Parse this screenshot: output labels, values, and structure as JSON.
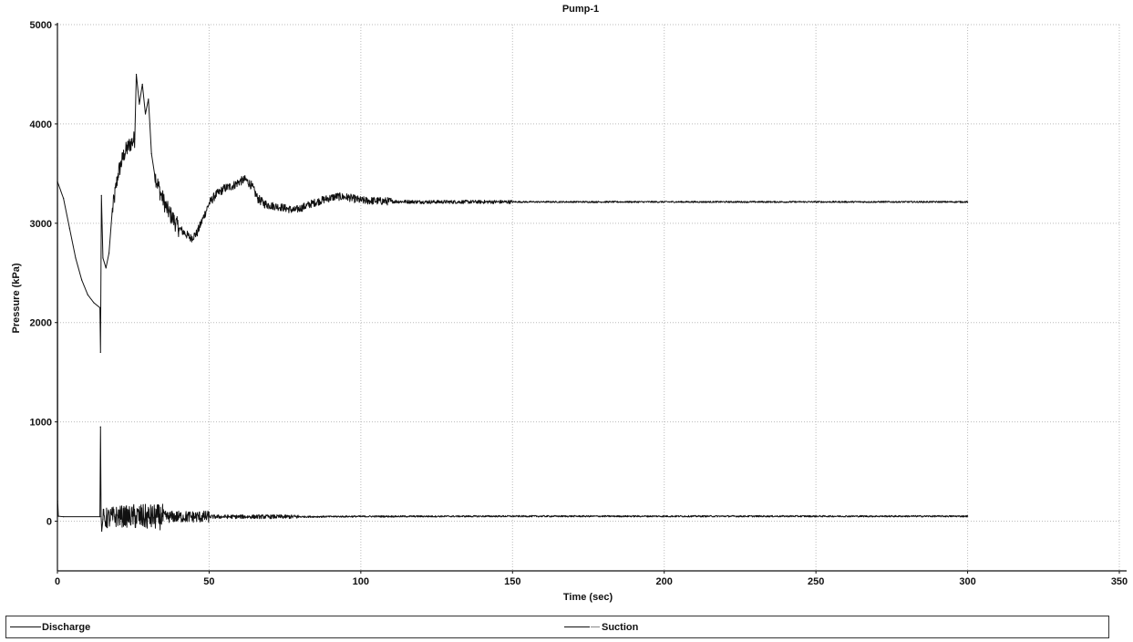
{
  "chart_data": {
    "type": "line",
    "title": "Pump-1",
    "xlabel": "Time (sec)",
    "ylabel": "Pressure (kPa)",
    "xlim": [
      0,
      350
    ],
    "ylim": [
      -500,
      5000
    ],
    "xticks": [
      0,
      50,
      100,
      150,
      200,
      250,
      300,
      350
    ],
    "yticks": [
      0,
      1000,
      2000,
      3000,
      4000,
      5000
    ],
    "grid": true,
    "legend_position": "bottom",
    "series": [
      {
        "name": "Discharge",
        "color": "#111111",
        "noise": [
          {
            "from": 14,
            "to": 40,
            "amp": 90
          },
          {
            "from": 40,
            "to": 70,
            "amp": 45
          },
          {
            "from": 70,
            "to": 110,
            "amp": 40
          },
          {
            "from": 110,
            "to": 150,
            "amp": 18
          },
          {
            "from": 150,
            "to": 300,
            "amp": 8
          }
        ],
        "x": [
          0,
          2,
          4,
          6,
          8,
          10,
          12,
          14,
          14.2,
          14.5,
          15,
          16,
          17,
          18,
          20,
          22,
          24,
          25.5,
          26,
          27,
          28,
          29,
          30,
          31,
          32,
          34,
          36,
          38,
          40,
          42,
          44,
          46,
          48,
          50,
          52,
          55,
          58,
          60,
          62,
          64,
          66,
          68,
          70,
          74,
          78,
          80,
          84,
          88,
          92,
          96,
          100,
          110,
          120,
          150,
          200,
          250,
          300
        ],
        "y": [
          3420,
          3250,
          2950,
          2650,
          2430,
          2280,
          2200,
          2150,
          1700,
          3280,
          2650,
          2550,
          2700,
          3100,
          3500,
          3700,
          3800,
          3850,
          4500,
          4200,
          4400,
          4100,
          4250,
          3700,
          3500,
          3300,
          3150,
          3050,
          2950,
          2900,
          2850,
          2900,
          3050,
          3200,
          3280,
          3350,
          3380,
          3420,
          3440,
          3380,
          3250,
          3200,
          3180,
          3160,
          3130,
          3150,
          3200,
          3240,
          3270,
          3260,
          3230,
          3220,
          3215,
          3215,
          3215,
          3215,
          3215
        ]
      },
      {
        "name": "Suction",
        "color": "#111111",
        "noise": [
          {
            "from": 14,
            "to": 25,
            "amp": 110
          },
          {
            "from": 25,
            "to": 35,
            "amp": 130
          },
          {
            "from": 35,
            "to": 50,
            "amp": 60
          },
          {
            "from": 50,
            "to": 80,
            "amp": 20
          },
          {
            "from": 80,
            "to": 300,
            "amp": 8
          }
        ],
        "x": [
          0,
          0.1,
          0.3,
          2,
          14,
          14.2,
          14.4,
          14.6,
          15,
          20,
          30,
          40,
          50,
          60,
          80,
          100,
          150,
          200,
          250,
          300
        ],
        "y": [
          5000,
          200,
          50,
          45,
          45,
          950,
          50,
          -100,
          20,
          50,
          40,
          45,
          45,
          45,
          45,
          48,
          50,
          50,
          50,
          50
        ]
      }
    ]
  },
  "legend": {
    "discharge_label": "Discharge",
    "suction_label": "Suction"
  }
}
